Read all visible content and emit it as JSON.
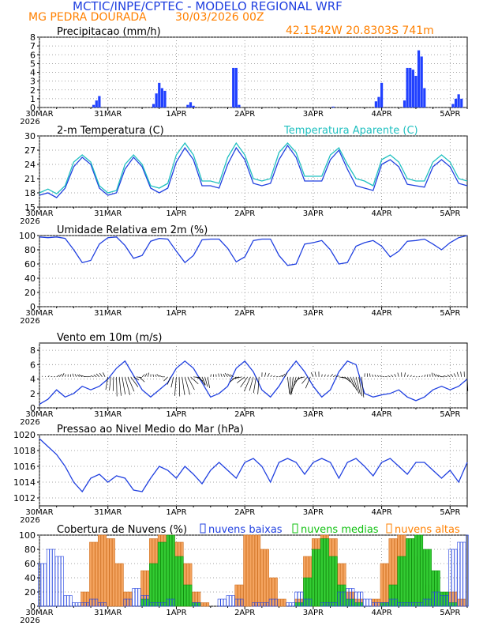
{
  "header": {
    "title": "MCTIC/INPE/CPTEC - MODELO REGIONAL WRF",
    "location": "MG PEDRA DOURADA",
    "run": "30/03/2026 00Z",
    "coords": "42.1542W 20.8303S 741m"
  },
  "colors": {
    "title": "#2040e0",
    "orange": "#ff8000",
    "blue": "#2040e0",
    "cyan": "#20c0c0",
    "green": "#10c010",
    "orangeFill": "#f4a460",
    "greenFill": "#33cc33",
    "blueBar": "#2040ff"
  },
  "x_ticks": [
    "30MAR",
    "31MAR",
    "1APR",
    "2APR",
    "3APR",
    "4APR",
    "5APR"
  ],
  "x_year": "2026",
  "chart_data": [
    {
      "id": "precip",
      "type": "bar",
      "title": "Precipitacao (mm/h)",
      "ylim": [
        0,
        8
      ],
      "yticks": [
        0,
        1,
        2,
        3,
        4,
        5,
        6,
        7,
        8
      ],
      "x_hours": [
        19,
        20,
        21,
        40,
        41,
        42,
        43,
        44,
        52,
        53,
        54,
        68,
        69,
        70,
        103,
        118,
        119,
        120,
        128,
        129,
        130,
        131,
        132,
        133,
        134,
        135,
        145,
        146,
        147,
        148
      ],
      "values": [
        0.3,
        0.8,
        1.3,
        0.4,
        1.6,
        2.8,
        2.2,
        1.9,
        0.3,
        0.6,
        0.2,
        4.5,
        4.5,
        0.3,
        0.1,
        0.7,
        1.2,
        2.8,
        0.8,
        4.5,
        4.5,
        4.3,
        3.6,
        6.5,
        5.8,
        2.2,
        0.4,
        1.0,
        1.5,
        1.0
      ]
    },
    {
      "id": "temp",
      "type": "line",
      "title": "2-m Temperatura (C)",
      "legend2": "Temperatura Aparente (C)",
      "ylim": [
        15,
        30
      ],
      "yticks": [
        15,
        18,
        21,
        24,
        27,
        30
      ],
      "x": [
        0,
        3,
        6,
        9,
        12,
        15,
        18,
        21,
        24,
        27,
        30,
        33,
        36,
        39,
        42,
        45,
        48,
        51,
        54,
        57,
        60,
        63,
        66,
        69,
        72,
        75,
        78,
        81,
        84,
        87,
        90,
        93,
        96,
        99,
        102,
        105,
        108,
        111,
        114,
        117,
        120,
        123,
        126,
        129,
        132,
        135,
        138,
        141,
        144,
        147,
        150
      ],
      "series": [
        {
          "name": "Temperatura",
          "values": [
            17.5,
            18.0,
            17.0,
            19.0,
            23.5,
            25.5,
            24.0,
            19.0,
            17.5,
            18.0,
            23.0,
            25.5,
            23.5,
            19.0,
            18.0,
            19.0,
            24.5,
            27.5,
            25.0,
            19.5,
            19.5,
            19.0,
            24.0,
            27.5,
            25.0,
            20.0,
            19.5,
            20.0,
            25.0,
            28.0,
            25.5,
            20.5,
            20.5,
            20.5,
            25.0,
            27.0,
            23.0,
            19.5,
            19.0,
            18.5,
            24.0,
            25.0,
            23.5,
            19.8,
            19.5,
            19.2,
            23.5,
            25.0,
            23.5,
            20.0,
            19.5
          ]
        },
        {
          "name": "Temperatura Aparente",
          "values": [
            18.0,
            18.8,
            17.8,
            19.5,
            24.5,
            26.0,
            24.5,
            19.5,
            18.0,
            18.5,
            24.0,
            26.0,
            24.0,
            19.5,
            19.0,
            20.0,
            26.0,
            28.5,
            26.0,
            20.5,
            20.5,
            20.0,
            25.5,
            28.5,
            26.0,
            21.0,
            20.5,
            21.0,
            26.5,
            28.5,
            26.5,
            21.5,
            21.5,
            21.5,
            26.0,
            27.5,
            24.0,
            21.0,
            20.5,
            19.5,
            25.0,
            26.0,
            24.5,
            21.0,
            20.5,
            20.5,
            24.5,
            26.0,
            24.5,
            21.0,
            20.5
          ]
        }
      ]
    },
    {
      "id": "rh",
      "type": "line",
      "title": "Umidade Relativa em 2m (%)",
      "ylim": [
        0,
        100
      ],
      "yticks": [
        0,
        20,
        40,
        60,
        80,
        100
      ],
      "x": [
        0,
        3,
        6,
        9,
        12,
        15,
        18,
        21,
        24,
        27,
        30,
        33,
        36,
        39,
        42,
        45,
        48,
        51,
        54,
        57,
        60,
        63,
        66,
        69,
        72,
        75,
        78,
        81,
        84,
        87,
        90,
        93,
        96,
        99,
        102,
        105,
        108,
        111,
        114,
        117,
        120,
        123,
        126,
        129,
        132,
        135,
        138,
        141,
        144,
        147,
        150
      ],
      "series": [
        {
          "name": "UR",
          "values": [
            98,
            97,
            98,
            96,
            80,
            62,
            65,
            88,
            97,
            98,
            86,
            68,
            72,
            92,
            96,
            95,
            78,
            62,
            72,
            94,
            95,
            95,
            82,
            63,
            70,
            93,
            95,
            95,
            72,
            58,
            60,
            88,
            90,
            93,
            80,
            60,
            62,
            85,
            90,
            93,
            85,
            70,
            78,
            92,
            93,
            95,
            88,
            80,
            90,
            97,
            100
          ]
        }
      ]
    },
    {
      "id": "wind",
      "type": "line",
      "title": "Vento em 10m (m/s)",
      "ylim": [
        0,
        9
      ],
      "yticks": [
        0,
        2,
        4,
        6,
        8
      ],
      "x": [
        0,
        3,
        6,
        9,
        12,
        15,
        18,
        21,
        24,
        27,
        30,
        33,
        36,
        39,
        42,
        45,
        48,
        51,
        54,
        57,
        60,
        63,
        66,
        69,
        72,
        75,
        78,
        81,
        84,
        87,
        90,
        93,
        96,
        99,
        102,
        105,
        108,
        111,
        114,
        117,
        120,
        123,
        126,
        129,
        132,
        135,
        138,
        141,
        144,
        147,
        150
      ],
      "series": [
        {
          "name": "Velocidade",
          "values": [
            0.5,
            1.2,
            2.5,
            1.5,
            2.0,
            3.0,
            2.5,
            3.0,
            4.0,
            5.5,
            6.5,
            4.5,
            2.5,
            1.5,
            2.5,
            3.5,
            5.5,
            6.5,
            5.5,
            3.5,
            1.5,
            2.0,
            3.0,
            5.5,
            6.5,
            5.0,
            2.5,
            1.5,
            3.0,
            5.0,
            6.5,
            5.0,
            3.0,
            1.5,
            2.5,
            5.0,
            6.5,
            6.0,
            2.0,
            1.5,
            1.8,
            2.0,
            2.5,
            1.5,
            1.0,
            1.5,
            2.5,
            3.0,
            2.5,
            3.0,
            4.0
          ]
        }
      ]
    },
    {
      "id": "pres",
      "type": "line",
      "title": "Pressao ao Nivel Medio do Mar (hPa)",
      "ylim": [
        1011,
        1020
      ],
      "yticks": [
        1012,
        1014,
        1016,
        1018,
        1020
      ],
      "x": [
        0,
        3,
        6,
        9,
        12,
        15,
        18,
        21,
        24,
        27,
        30,
        33,
        36,
        39,
        42,
        45,
        48,
        51,
        54,
        57,
        60,
        63,
        66,
        69,
        72,
        75,
        78,
        81,
        84,
        87,
        90,
        93,
        96,
        99,
        102,
        105,
        108,
        111,
        114,
        117,
        120,
        123,
        126,
        129,
        132,
        135,
        138,
        141,
        144,
        147,
        150
      ],
      "series": [
        {
          "name": "PNMM",
          "values": [
            1019.5,
            1018.5,
            1017.5,
            1016.0,
            1014.0,
            1012.8,
            1014.5,
            1015.0,
            1014.0,
            1014.8,
            1014.5,
            1013.0,
            1012.8,
            1014.5,
            1016.0,
            1015.5,
            1014.5,
            1016.0,
            1015.0,
            1013.8,
            1015.5,
            1016.5,
            1015.5,
            1014.5,
            1016.5,
            1017.0,
            1016.0,
            1014.0,
            1016.5,
            1017.0,
            1016.5,
            1015.0,
            1016.5,
            1017.0,
            1016.5,
            1014.5,
            1016.5,
            1017.0,
            1016.0,
            1014.8,
            1016.5,
            1017.0,
            1016.0,
            1015.0,
            1016.5,
            1016.5,
            1015.5,
            1014.5,
            1015.5,
            1014.0,
            1016.5
          ]
        }
      ]
    },
    {
      "id": "clouds",
      "type": "bar",
      "title": "Cobertura de Nuvens (%)",
      "legend": [
        "nuvens baixas",
        "nuvens medias",
        "nuvens altas"
      ],
      "ylim": [
        0,
        100
      ],
      "yticks": [
        0,
        20,
        40,
        60,
        80,
        100
      ],
      "x": [
        0,
        3,
        6,
        9,
        12,
        15,
        18,
        21,
        24,
        27,
        30,
        33,
        36,
        39,
        42,
        45,
        48,
        51,
        54,
        57,
        60,
        63,
        66,
        69,
        72,
        75,
        78,
        81,
        84,
        87,
        90,
        93,
        96,
        99,
        102,
        105,
        108,
        111,
        114,
        117,
        120,
        123,
        126,
        129,
        132,
        135,
        138,
        141,
        144,
        147,
        150
      ],
      "series": [
        {
          "name": "nuvens baixas",
          "values": [
            60,
            80,
            70,
            15,
            5,
            5,
            10,
            5,
            0,
            0,
            10,
            25,
            15,
            5,
            5,
            10,
            0,
            0,
            5,
            0,
            0,
            10,
            15,
            10,
            0,
            5,
            5,
            10,
            0,
            5,
            20,
            10,
            0,
            5,
            5,
            20,
            25,
            20,
            10,
            5,
            5,
            10,
            5,
            5,
            5,
            10,
            20,
            15,
            80,
            90,
            100
          ]
        },
        {
          "name": "nuvens medias",
          "values": [
            0,
            0,
            0,
            0,
            0,
            0,
            0,
            0,
            0,
            0,
            0,
            0,
            10,
            60,
            90,
            100,
            70,
            30,
            5,
            0,
            0,
            0,
            0,
            0,
            0,
            0,
            0,
            0,
            0,
            0,
            5,
            40,
            80,
            95,
            70,
            30,
            10,
            5,
            0,
            0,
            5,
            30,
            70,
            95,
            100,
            80,
            50,
            20,
            5,
            0,
            0
          ]
        },
        {
          "name": "nuvens altas",
          "values": [
            0,
            0,
            0,
            0,
            0,
            20,
            90,
            100,
            95,
            60,
            20,
            0,
            50,
            95,
            100,
            100,
            90,
            60,
            20,
            5,
            0,
            0,
            0,
            30,
            100,
            100,
            80,
            40,
            10,
            0,
            10,
            70,
            95,
            100,
            95,
            60,
            20,
            10,
            0,
            10,
            60,
            95,
            100,
            95,
            70,
            30,
            10,
            0,
            20,
            10,
            0
          ]
        }
      ]
    }
  ]
}
